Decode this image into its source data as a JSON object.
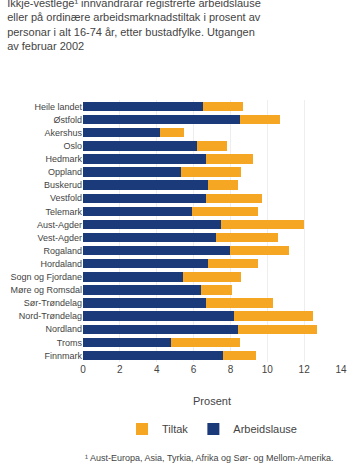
{
  "chart_data": {
    "type": "bar",
    "orientation": "horizontal",
    "stacked": true,
    "title": "Ikkje-vestlege¹ innvandrarar registrerte arbeidslause\neller på ordinære arbeidsmarknadstiltak i prosent av\npersonar i alt 16-74 år, etter bustadfylke. Utgangen\nav februar 2002",
    "xlabel": "Prosent",
    "annotations": [
      "¹ Aust-Europa, Asia, Tyrkia, Afrika og Sør- og Mellom-Amerika."
    ],
    "categories": [
      "Heile landet",
      "Østfold",
      "Akershus",
      "Oslo",
      "Hedmark",
      "Oppland",
      "Buskerud",
      "Vestfold",
      "Telemark",
      "Aust-Agder",
      "Vest-Agder",
      "Rogaland",
      "Hordaland",
      "Sogn og Fjordane",
      "Møre og Romsdal",
      "Sør-Trøndelag",
      "Nord-Trøndelag",
      "Nordland",
      "Troms",
      "Finnmark"
    ],
    "series": [
      {
        "name": "Arbeidslause",
        "color": "#1a3a7a",
        "values": [
          6.5,
          8.5,
          4.2,
          6.2,
          6.7,
          5.3,
          6.8,
          6.7,
          5.9,
          7.5,
          7.2,
          8.0,
          6.8,
          5.4,
          6.4,
          6.7,
          8.2,
          8.4,
          4.8,
          7.6
        ]
      },
      {
        "name": "Tiltak",
        "color": "#f5a623",
        "values": [
          2.2,
          2.2,
          1.3,
          1.6,
          2.5,
          3.3,
          1.6,
          3.0,
          3.6,
          4.5,
          3.4,
          3.2,
          2.7,
          3.2,
          1.7,
          3.6,
          4.3,
          4.3,
          3.7,
          1.8
        ]
      }
    ],
    "xlim": [
      0,
      14
    ],
    "xticks": [
      0,
      2,
      4,
      6,
      8,
      10,
      12,
      14
    ],
    "grid": true,
    "legend": "bottom"
  }
}
